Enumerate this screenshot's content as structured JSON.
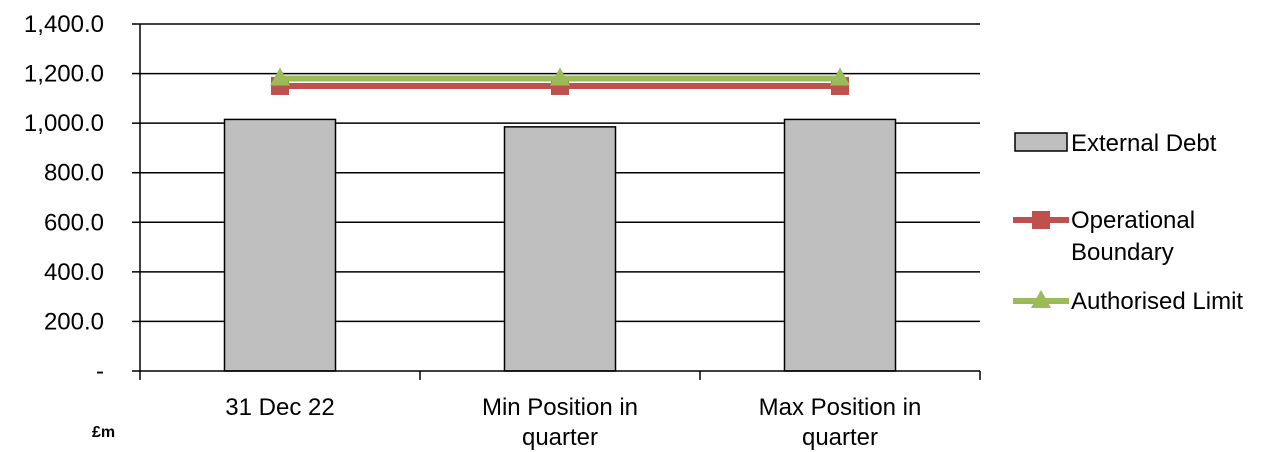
{
  "chart_data": {
    "type": "bar",
    "categories": [
      [
        "31 Dec 22"
      ],
      [
        "Min Position in",
        "quarter"
      ],
      [
        "Max Position in",
        "quarter"
      ]
    ],
    "series": [
      {
        "name": "External Debt",
        "type": "bar",
        "values": [
          1015,
          985,
          1015
        ],
        "color": "#bfbfbf"
      },
      {
        "name": "Operational Boundary",
        "type": "line",
        "values": [
          1150,
          1150,
          1150
        ],
        "color": "#c0504d",
        "marker": "square"
      },
      {
        "name": "Authorised Limit",
        "type": "line",
        "values": [
          1180,
          1180,
          1180
        ],
        "color": "#9bbb59",
        "marker": "triangle"
      }
    ],
    "legend_labels": [
      [
        "External Debt"
      ],
      [
        "Operational",
        "Boundary"
      ],
      [
        "Authorised Limit"
      ]
    ],
    "yticks": [
      {
        "value": 0,
        "label": "-"
      },
      {
        "value": 200,
        "label": "200.0"
      },
      {
        "value": 400,
        "label": "400.0"
      },
      {
        "value": 600,
        "label": "600.0"
      },
      {
        "value": 800,
        "label": "800.0"
      },
      {
        "value": 1000,
        "label": "1,000.0"
      },
      {
        "value": 1200,
        "label": "1,200.0"
      },
      {
        "value": 1400,
        "label": "1,400.0"
      }
    ],
    "ylim": [
      0,
      1400
    ],
    "grid": true,
    "legend_position": "right",
    "unit_label": "£m"
  }
}
